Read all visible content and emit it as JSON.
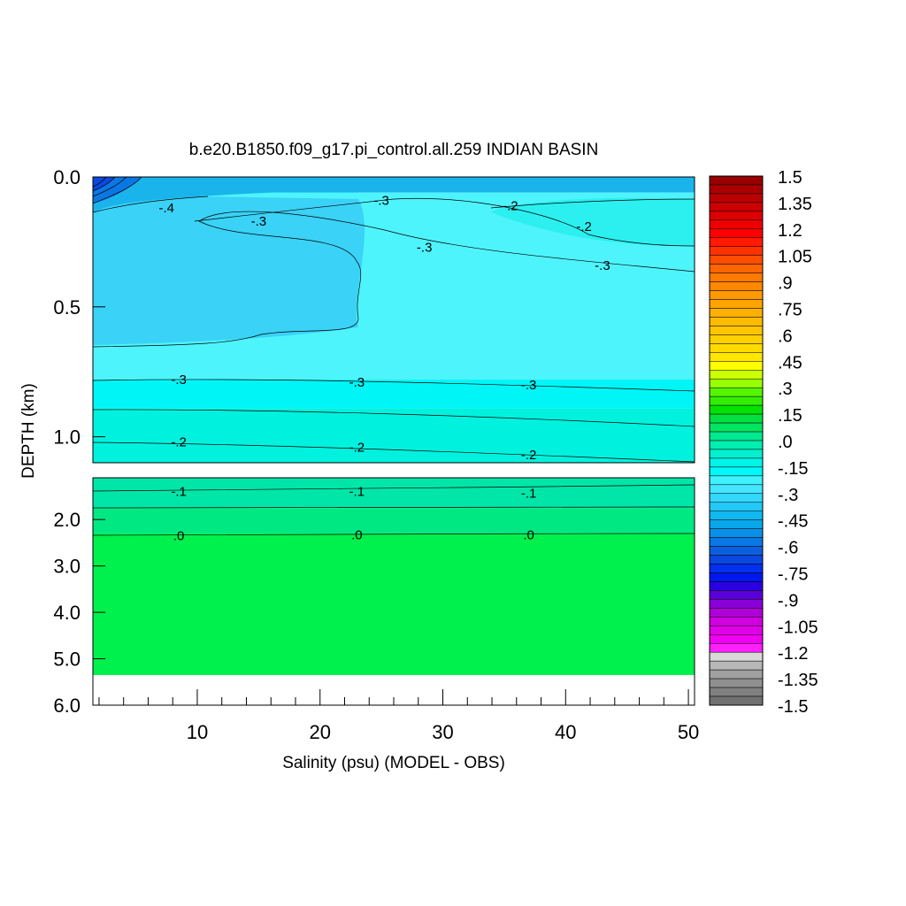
{
  "chart_data": {
    "type": "heatmap",
    "title": "b.e20.B1850.f09_g17.pi_control.all.259 INDIAN BASIN",
    "xlabel": "Salinity (psu) (MODEL - OBS)",
    "ylabel": "DEPTH (km)",
    "xlim": [
      1.5,
      50.5
    ],
    "x_ticks": [
      10,
      20,
      30,
      40,
      50
    ],
    "upper_panel": {
      "ylim": [
        0.0,
        1.1
      ],
      "y_ticks": [
        "0.0",
        "0.5",
        "1.0"
      ],
      "bands": [
        {
          "depth_top": 0.0,
          "depth_bottom": 0.06,
          "value": -0.55,
          "color": "#1ab4ec"
        },
        {
          "depth_top": 0.06,
          "depth_bottom": 0.65,
          "value": -0.4,
          "color": "#3ad2f6"
        },
        {
          "depth_top": 0.06,
          "depth_bottom": 0.78,
          "value": -0.35,
          "color": "#4ef4fc"
        },
        {
          "depth_top": 0.78,
          "depth_bottom": 0.89,
          "value": -0.3,
          "color": "#00f6f6"
        },
        {
          "depth_top": 0.89,
          "depth_bottom": 1.1,
          "value": -0.25,
          "color": "#00f2de"
        }
      ],
      "contour_labels": [
        {
          "text": "-.4",
          "x": 7.5,
          "depth": 0.12
        },
        {
          "text": "-.3",
          "x": 15,
          "depth": 0.17
        },
        {
          "text": "-.3",
          "x": 25,
          "depth": 0.09
        },
        {
          "text": "-.3",
          "x": 28.5,
          "depth": 0.27
        },
        {
          "text": "-.2",
          "x": 35.5,
          "depth": 0.11
        },
        {
          "text": "-.2",
          "x": 41.5,
          "depth": 0.19
        },
        {
          "text": "-.3",
          "x": 43,
          "depth": 0.34
        },
        {
          "text": "-.3",
          "x": 8.5,
          "depth": 0.78
        },
        {
          "text": "-.3",
          "x": 23,
          "depth": 0.79
        },
        {
          "text": "-.3",
          "x": 37,
          "depth": 0.8
        },
        {
          "text": "-.2",
          "x": 8.5,
          "depth": 1.02
        },
        {
          "text": "-.2",
          "x": 23,
          "depth": 1.04
        },
        {
          "text": "-.2",
          "x": 37,
          "depth": 1.07
        }
      ]
    },
    "lower_panel": {
      "ylim": [
        1.1,
        6.0
      ],
      "y_ticks": [
        "2.0",
        "3.0",
        "4.0",
        "5.0",
        "6.0"
      ],
      "data_bottom": 5.35,
      "bands": [
        {
          "depth_top": 1.1,
          "depth_bottom": 1.75,
          "value": -0.1,
          "color": "#00e6a8"
        },
        {
          "depth_top": 1.75,
          "depth_bottom": 2.3,
          "value": -0.05,
          "color": "#00e882"
        },
        {
          "depth_top": 2.3,
          "depth_bottom": 5.35,
          "value": 0.0,
          "color": "#00f04e"
        }
      ],
      "contour_labels": [
        {
          "text": "-.1",
          "x": 8.5,
          "depth": 1.4
        },
        {
          "text": "-.1",
          "x": 23,
          "depth": 1.4
        },
        {
          "text": "-.1",
          "x": 37,
          "depth": 1.43
        },
        {
          "text": ".0",
          "x": 8.5,
          "depth": 2.35
        },
        {
          "text": ".0",
          "x": 23,
          "depth": 2.33
        },
        {
          "text": ".0",
          "x": 37,
          "depth": 2.33
        }
      ]
    },
    "colorbar": {
      "labels": [
        "1.5",
        "1.35",
        "1.2",
        "1.05",
        ".9",
        ".75",
        ".6",
        ".45",
        ".3",
        ".15",
        ".0",
        "-.15",
        "-.3",
        "-.45",
        "-.6",
        "-.75",
        "-.9",
        "-1.05",
        "-1.2",
        "-1.35",
        "-1.5"
      ],
      "colors": [
        "#990000",
        "#aa0000",
        "#bb0000",
        "#cc0000",
        "#dd0000",
        "#ee0000",
        "#ff0000",
        "#ff1a00",
        "#ff3300",
        "#ff4d00",
        "#ff6600",
        "#ff7a00",
        "#ff8800",
        "#ff9900",
        "#ffa500",
        "#ffb000",
        "#ffbb00",
        "#ffc600",
        "#ffd000",
        "#ffdb00",
        "#ffe600",
        "#ffff00",
        "#ccff00",
        "#99ff00",
        "#55f500",
        "#33ee00",
        "#00e400",
        "#00e040",
        "#00e660",
        "#00e890",
        "#00eeb0",
        "#00f0d0",
        "#00f4e8",
        "#00f8f8",
        "#40f2ff",
        "#44e6ff",
        "#33d8fc",
        "#22c8f6",
        "#11b8f0",
        "#0aa6ec",
        "#0890e8",
        "#0a78e4",
        "#0a60e0",
        "#0a48e0",
        "#0030f0",
        "#0018f0",
        "#2a00e0",
        "#5a00d8",
        "#8a00d8",
        "#b000d8",
        "#d000e0",
        "#e000e8",
        "#f000f0",
        "#ff20ff",
        "#d8d8d8",
        "#b8b8b8",
        "#a0a0a0",
        "#909090",
        "#808080",
        "#707070"
      ]
    }
  }
}
